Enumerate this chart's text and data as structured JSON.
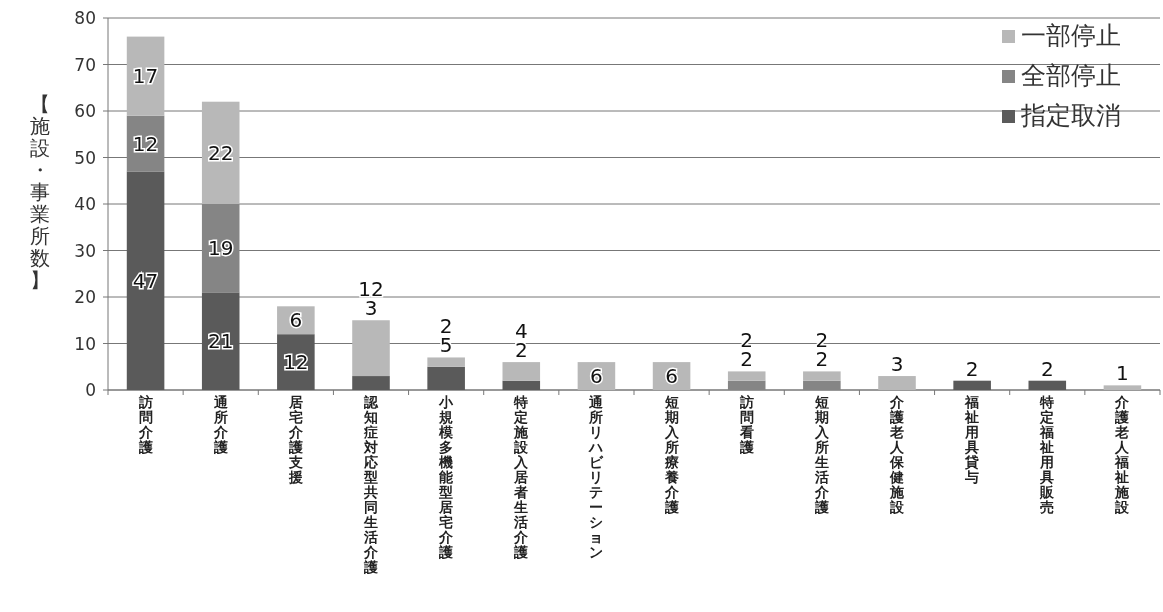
{
  "chart_data": {
    "type": "bar",
    "stacked": true,
    "ylabel": "【施設・事業所数】",
    "categories": [
      "訪問介護",
      "通所介護",
      "居宅介護支援",
      "認知症対応型共同生活介護",
      "小規模多機能型居宅介護",
      "特定施設入居者生活介護",
      "通所リハビリテーション",
      "短期入所療養介護",
      "訪問看護",
      "短期入所生活介護",
      "介護老人保健施設",
      "福祉用具貸与",
      "特定福祉用具販売",
      "介護老人福祉施設"
    ],
    "series": [
      {
        "name": "指定取消",
        "color": "#5a5a5a",
        "values": [
          47,
          21,
          12,
          3,
          5,
          2,
          0,
          0,
          0,
          0,
          0,
          2,
          2,
          0
        ],
        "value_labels": [
          "47",
          "21",
          "12",
          "3",
          "5",
          "2",
          null,
          null,
          null,
          null,
          null,
          "2",
          "2",
          null
        ]
      },
      {
        "name": "全部停止",
        "color": "#858585",
        "values": [
          12,
          19,
          0,
          0,
          0,
          0,
          0,
          0,
          2,
          2,
          0,
          0,
          0,
          0
        ],
        "value_labels": [
          "12",
          "19",
          null,
          null,
          null,
          null,
          null,
          null,
          "2",
          "2",
          null,
          null,
          null,
          null
        ]
      },
      {
        "name": "一部停止",
        "color": "#b8b8b8",
        "values": [
          17,
          22,
          6,
          12,
          2,
          4,
          6,
          6,
          2,
          2,
          3,
          0,
          0,
          1
        ],
        "value_labels": [
          "17",
          "22",
          "6",
          "12",
          "2",
          "4",
          "6",
          "6",
          "2",
          "2",
          "3",
          null,
          null,
          "1"
        ]
      }
    ],
    "ylim": [
      0,
      80
    ],
    "yticks": [
      0,
      10,
      20,
      30,
      40,
      50,
      60,
      70,
      80
    ],
    "grid": "y",
    "legend": "top right"
  }
}
